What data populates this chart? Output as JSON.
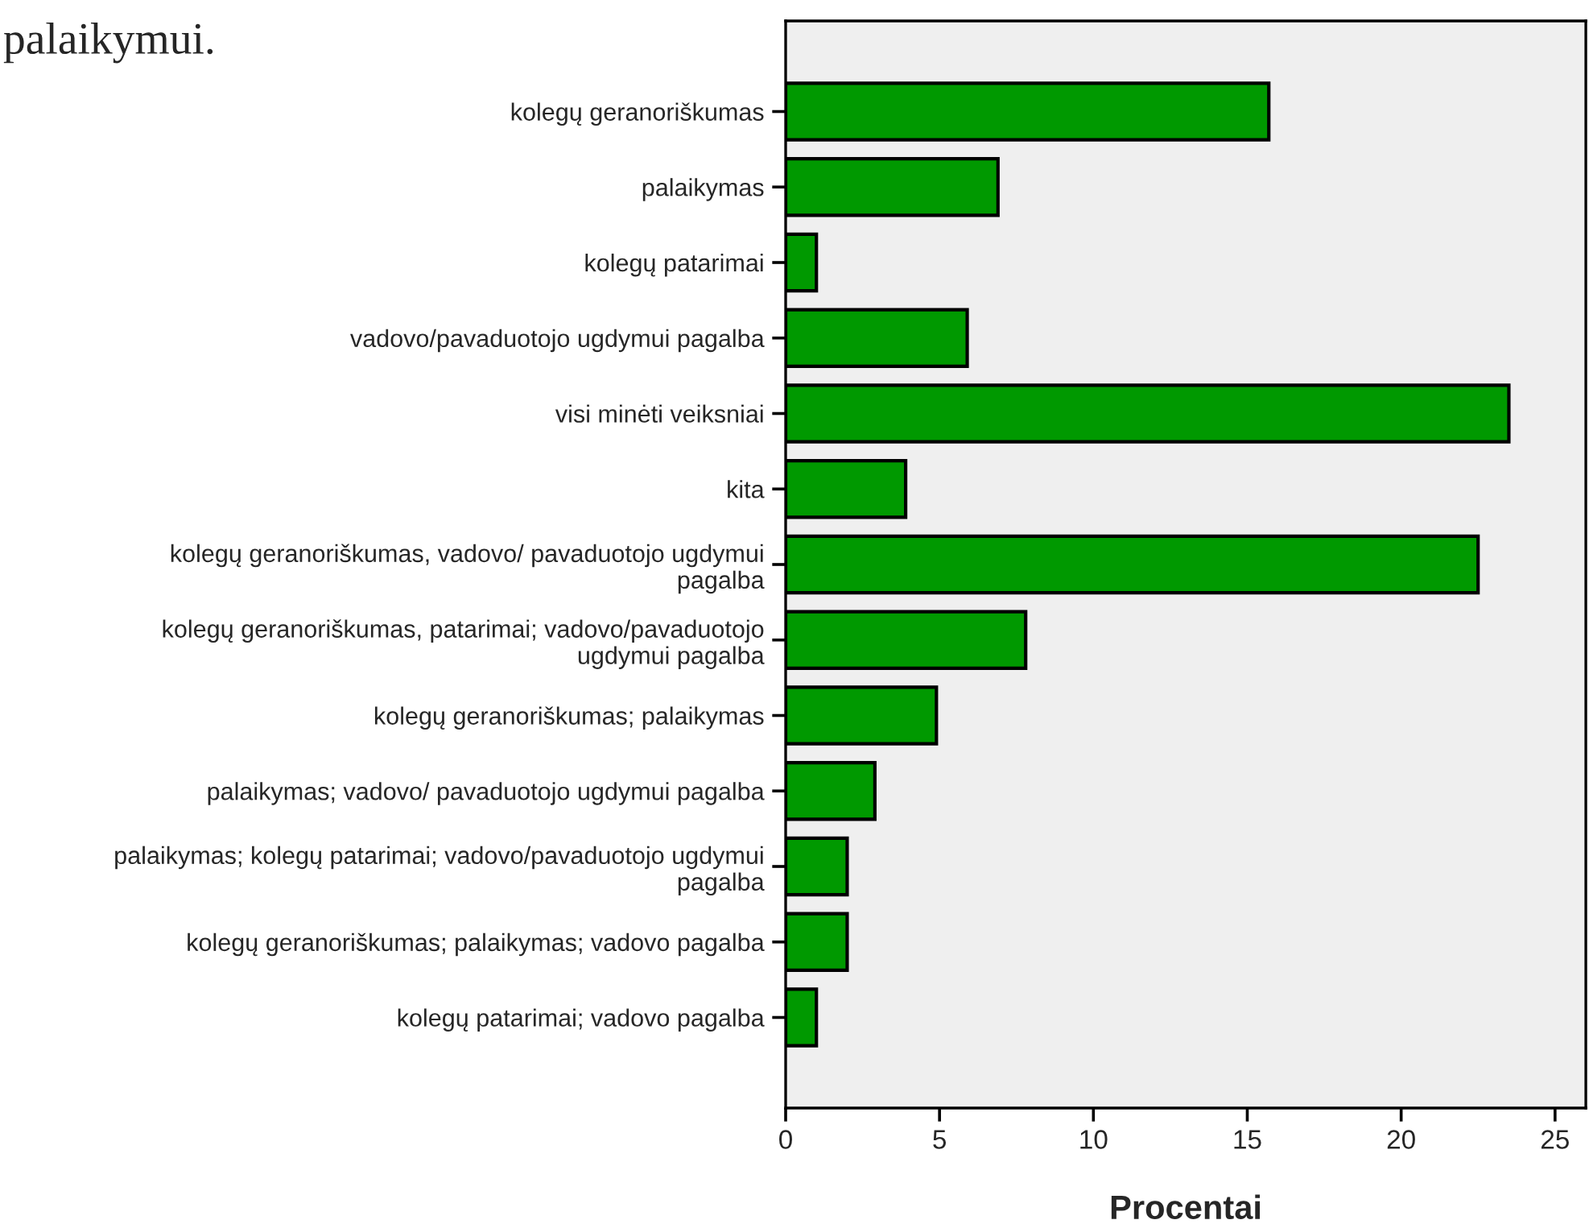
{
  "chart_data": {
    "type": "bar",
    "orientation": "horizontal",
    "xlabel": "Procentai",
    "categories": [
      "kolegų geranoriškumas",
      "palaikymas",
      "kolegų patarimai",
      "vadovo/pavaduotojo ugdymui pagalba",
      "visi minėti veiksniai",
      "kita",
      "kolegų geranoriškumas, vadovo/ pavaduotojo ugdymui\npagalba",
      "kolegų geranoriškumas, patarimai; vadovo/pavaduotojo\nugdymui pagalba",
      "kolegų geranoriškumas; palaikymas",
      "palaikymas; vadovo/ pavaduotojo ugdymui pagalba",
      "palaikymas; kolegų patarimai; vadovo/pavaduotojo ugdymui\npagalba",
      "kolegų geranoriškumas; palaikymas; vadovo pagalba",
      "kolegų patarimai; vadovo pagalba"
    ],
    "values": [
      15.7,
      6.9,
      1.0,
      5.9,
      23.5,
      3.9,
      22.5,
      7.8,
      4.9,
      2.9,
      2.0,
      2.0,
      1.0
    ],
    "color": "#009900",
    "xlim": [
      0,
      26
    ],
    "xticks": [
      0,
      5,
      10,
      15,
      20,
      25
    ],
    "grid": false,
    "legend": false,
    "annotations": [
      "palaikymui."
    ]
  }
}
